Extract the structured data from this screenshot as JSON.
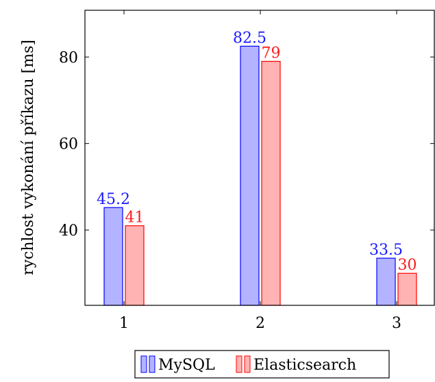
{
  "chart_data": {
    "type": "bar",
    "categories": [
      "1",
      "2",
      "3"
    ],
    "series": [
      {
        "name": "MySQL",
        "values": [
          45.2,
          82.5,
          33.5
        ],
        "color_fill": "#b3b3ff",
        "color_stroke": "#0000ff",
        "label_color": "#1a1aff"
      },
      {
        "name": "Elasticsearch",
        "values": [
          41,
          79,
          30
        ],
        "color_fill": "#ffb3b3",
        "color_stroke": "#ff0000",
        "label_color": "#ff1a1a"
      }
    ],
    "title": "",
    "xlabel": "",
    "ylabel": "rychlost vykonání příkazu [ms]",
    "ylim": [
      22.6,
      90.8
    ],
    "yticks": [
      40,
      60,
      80
    ],
    "legend_position": "bottom",
    "grid": false
  }
}
